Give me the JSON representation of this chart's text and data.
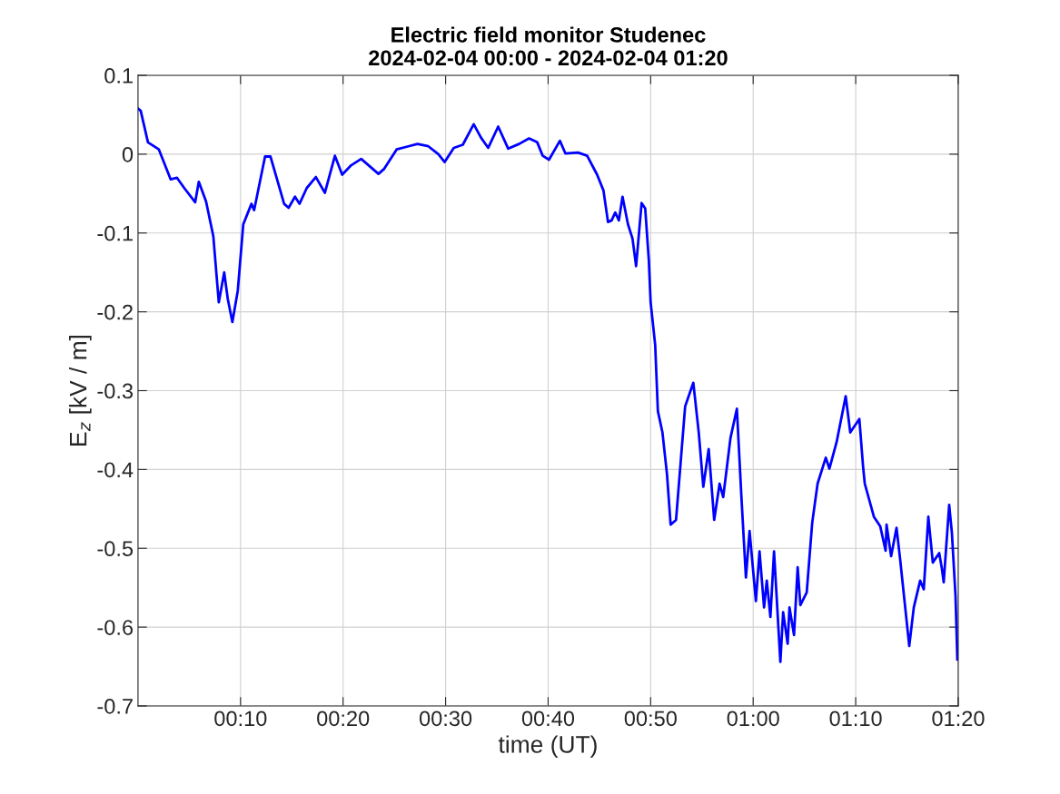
{
  "chart_data": {
    "type": "line",
    "title": "Electric field monitor Studenec",
    "subtitle": "2024-02-04 00:00 - 2024-02-04 01:20",
    "xlabel": "time (UT)",
    "ylabel": "E$_{z}$ [kV / m]",
    "xlim": [
      0,
      1.33333
    ],
    "ylim": [
      -0.7,
      0.1
    ],
    "xticks": [
      {
        "value": 0.16667,
        "label": "00:10"
      },
      {
        "value": 0.33333,
        "label": "00:20"
      },
      {
        "value": 0.5,
        "label": "00:30"
      },
      {
        "value": 0.66667,
        "label": "00:40"
      },
      {
        "value": 0.83333,
        "label": "00:50"
      },
      {
        "value": 1.0,
        "label": "01:00"
      },
      {
        "value": 1.16667,
        "label": "01:10"
      },
      {
        "value": 1.33333,
        "label": "01:20"
      }
    ],
    "yticks": [
      -0.7,
      -0.6,
      -0.5,
      -0.4,
      -0.3,
      -0.2,
      -0.1,
      0,
      0.1
    ],
    "grid": true,
    "marker": "none",
    "line_style": "solid",
    "series": [
      {
        "color": "#0000ff",
        "x": [
          0,
          0.0044,
          0.0162,
          0.0339,
          0.0531,
          0.0634,
          0.0752,
          0.0929,
          0.0988,
          0.1106,
          0.1224,
          0.1313,
          0.1401,
          0.146,
          0.1534,
          0.1622,
          0.1711,
          0.1844,
          0.1888,
          0.2065,
          0.2153,
          0.2257,
          0.2375,
          0.2448,
          0.2552,
          0.2625,
          0.2743,
          0.2891,
          0.3038,
          0.3201,
          0.3319,
          0.3466,
          0.3628,
          0.3909,
          0.3997,
          0.4204,
          0.4395,
          0.4543,
          0.472,
          0.4882,
          0.4985,
          0.5133,
          0.528,
          0.5457,
          0.5575,
          0.5693,
          0.5855,
          0.6018,
          0.6195,
          0.6357,
          0.649,
          0.6578,
          0.6681,
          0.6858,
          0.6947,
          0.7153,
          0.7301,
          0.7463,
          0.7566,
          0.764,
          0.7699,
          0.7758,
          0.7817,
          0.7876,
          0.7965,
          0.8038,
          0.8097,
          0.8186,
          0.8245,
          0.8304,
          0.8333,
          0.8407,
          0.8451,
          0.8525,
          0.8599,
          0.8658,
          0.8746,
          0.8894,
          0.9027,
          0.9115,
          0.9189,
          0.9277,
          0.9366,
          0.9454,
          0.9513,
          0.9631,
          0.9735,
          0.9808,
          0.9882,
          0.9941,
          1.0044,
          1.0103,
          1.0177,
          1.0221,
          1.028,
          1.0339,
          1.0442,
          1.0487,
          1.056,
          1.059,
          1.0664,
          1.0723,
          1.0767,
          1.087,
          1.0959,
          1.1047,
          1.118,
          1.1239,
          1.1357,
          1.1504,
          1.1578,
          1.1726,
          1.1785,
          1.1814,
          1.1962,
          1.2065,
          1.2153,
          1.2168,
          1.2242,
          1.233,
          1.2389,
          1.2537,
          1.2611,
          1.2714,
          1.2773,
          1.2847,
          1.292,
          1.3024,
          1.3068,
          1.3097,
          1.3186,
          1.323,
          1.3289,
          1.3319
        ],
        "values": [
          0.058,
          0.055,
          0.015,
          0.006,
          -0.032,
          -0.03,
          -0.043,
          -0.061,
          -0.035,
          -0.06,
          -0.104,
          -0.188,
          -0.15,
          -0.184,
          -0.213,
          -0.173,
          -0.089,
          -0.063,
          -0.071,
          -0.003,
          -0.003,
          -0.031,
          -0.063,
          -0.068,
          -0.054,
          -0.063,
          -0.043,
          -0.029,
          -0.049,
          -0.002,
          -0.026,
          -0.014,
          -0.006,
          -0.025,
          -0.019,
          0.006,
          0.01,
          0.013,
          0.01,
          0.0,
          -0.01,
          0.008,
          0.012,
          0.038,
          0.021,
          0.008,
          0.035,
          0.007,
          0.013,
          0.02,
          0.015,
          -0.002,
          -0.007,
          0.017,
          0.001,
          0.002,
          -0.002,
          -0.026,
          -0.046,
          -0.086,
          -0.084,
          -0.074,
          -0.084,
          -0.054,
          -0.089,
          -0.107,
          -0.142,
          -0.062,
          -0.069,
          -0.135,
          -0.188,
          -0.242,
          -0.326,
          -0.353,
          -0.406,
          -0.47,
          -0.464,
          -0.32,
          -0.29,
          -0.353,
          -0.422,
          -0.374,
          -0.464,
          -0.418,
          -0.435,
          -0.36,
          -0.323,
          -0.434,
          -0.537,
          -0.478,
          -0.567,
          -0.504,
          -0.575,
          -0.541,
          -0.587,
          -0.504,
          -0.644,
          -0.581,
          -0.621,
          -0.575,
          -0.61,
          -0.524,
          -0.572,
          -0.556,
          -0.468,
          -0.418,
          -0.385,
          -0.399,
          -0.365,
          -0.307,
          -0.353,
          -0.336,
          -0.395,
          -0.418,
          -0.46,
          -0.472,
          -0.503,
          -0.47,
          -0.51,
          -0.474,
          -0.514,
          -0.624,
          -0.575,
          -0.541,
          -0.552,
          -0.46,
          -0.518,
          -0.506,
          -0.526,
          -0.543,
          -0.445,
          -0.48,
          -0.56,
          -0.641
        ]
      }
    ]
  }
}
